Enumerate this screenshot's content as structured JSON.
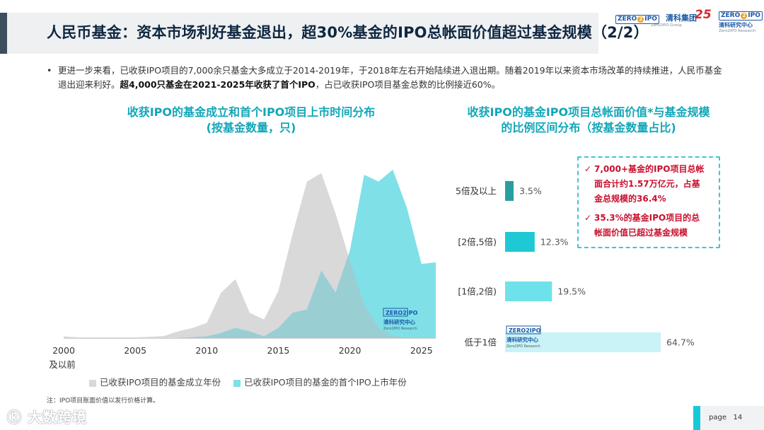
{
  "header": {
    "title": "人民币基金：资本市场利好基金退出，超30%基金的IPO总帐面价值超过基金规模（2/2）",
    "logo_group_cn": "清科集团",
    "logo_group_en": "Zero2IPO Group",
    "logo_zero": "ZERO",
    "logo_two": "2",
    "logo_ipo": "IPO",
    "logo_anniv": "25",
    "logo_research_cn": "清科研究中心",
    "logo_research_en": "Zero2IPO Research"
  },
  "bullet": {
    "marker": "•",
    "text_1": "更进一步来看，已收获IPO项目的7,000余只基金大多成立于2014-2019年，于2018年左右开始陆续进入退出期。随着2019年以来资本市场改革的持续推进，人民币基金退出迎来利好。",
    "text_bold": "超4,000只基金在2021-2025年收获了首个IPO",
    "text_2": "，占已收获IPO项目基金总数的比例接近60%。"
  },
  "left_chart_title": {
    "line1": "收获IPO的基金成立和首个IPO项目上市时间分布",
    "line2": "(按基金数量，只)"
  },
  "right_chart_title": {
    "line1": "收获IPO的基金IPO项目总帐面价值*与基金规模",
    "line2": "的比例区间分布（按基金数量占比)"
  },
  "callout": {
    "check": "✓",
    "item1_line1": "7,000+基金的IPO项目总帐",
    "item1_line2": "面合计约1.57万亿元，占基",
    "item1_line3": "金总规模的36.4%",
    "item2_line1": "35.3%的基金IPO项目的总",
    "item2_line2": "帐面价值已超过基金规模"
  },
  "colors": {
    "title_accent": "#3d4e5e",
    "chart_title": "#13a6b8",
    "series_founding": "#d9d9d9",
    "series_first_ipo": "#7fe0e8",
    "overlap": "#99cfd3",
    "callout_text": "#c8102e",
    "callout_border": "#43c4d4",
    "bar_5plus": "#2a9d9f",
    "bar_2to5": "#1ec8d4",
    "bar_1to2": "#6ee2ea",
    "bar_below1": "#c9f3f6"
  },
  "chart_data": [
    {
      "type": "area",
      "title": "收获IPO的基金成立和首个IPO项目上市时间分布",
      "subtitle": "(按基金数量，只)",
      "x_tick_labels": [
        "2000",
        "2005",
        "2010",
        "2015",
        "2020",
        "2025"
      ],
      "x_first_tick_sublabel": "及以前",
      "x_range": [
        2000,
        2026
      ],
      "y_axis_shown": false,
      "note": "no numeric y-axis printed; values are relative shares of the tallest peak (1.0)",
      "series": [
        {
          "name": "已收获IPO项目的基金成立年份",
          "x": [
            2000,
            2001,
            2002,
            2003,
            2004,
            2005,
            2006,
            2007,
            2008,
            2009,
            2010,
            2011,
            2012,
            2013,
            2014,
            2015,
            2016,
            2017,
            2018,
            2019,
            2020,
            2021,
            2022,
            2023,
            2024,
            2025
          ],
          "values": [
            0.01,
            0.004,
            0.004,
            0.004,
            0.004,
            0.004,
            0.007,
            0.012,
            0.04,
            0.06,
            0.09,
            0.27,
            0.35,
            0.15,
            0.11,
            0.28,
            0.62,
            0.93,
            0.98,
            0.74,
            0.46,
            0.2,
            0.06,
            0.015,
            0.003,
            0.0
          ]
        },
        {
          "name": "已收获IPO项目的基金的首个IPO上市年份",
          "x": [
            2000,
            2001,
            2002,
            2003,
            2004,
            2005,
            2006,
            2007,
            2008,
            2009,
            2010,
            2011,
            2012,
            2013,
            2014,
            2015,
            2016,
            2017,
            2018,
            2019,
            2020,
            2021,
            2022,
            2023,
            2024,
            2025,
            2026
          ],
          "values": [
            0.0,
            0.0,
            0.0,
            0.0,
            0.0,
            0.0,
            0.0,
            0.0,
            0.0,
            0.005,
            0.01,
            0.03,
            0.06,
            0.04,
            0.01,
            0.06,
            0.15,
            0.17,
            0.4,
            0.27,
            0.52,
            0.97,
            0.93,
            1.0,
            0.77,
            0.44,
            0.45
          ]
        }
      ],
      "legend_placement": "bottom"
    },
    {
      "type": "bar",
      "orientation": "horizontal",
      "title": "收获IPO的基金IPO项目总帐面价值*与基金规模",
      "subtitle": "的比例区间分布（按基金数量占比)",
      "categories": [
        "5倍及以上",
        "[2倍,5倍)",
        "[1倍,2倍)",
        "低于1倍"
      ],
      "values": [
        3.5,
        12.3,
        19.5,
        64.7
      ],
      "value_labels": [
        "3.5%",
        "12.3%",
        "19.5%",
        "64.7%"
      ],
      "unit": "%",
      "grid": false
    }
  ],
  "legend": {
    "marker": "■",
    "item1": "已收获IPO项目的基金成立年份",
    "item2": "已收获IPO项目的基金的首个IPO上市年份"
  },
  "note": "注：IPO项目账面价值以发行价格计算。",
  "watermark": "大数跨境",
  "watermark_icon": "ⓚ",
  "page": {
    "label": "page",
    "number": "14"
  }
}
